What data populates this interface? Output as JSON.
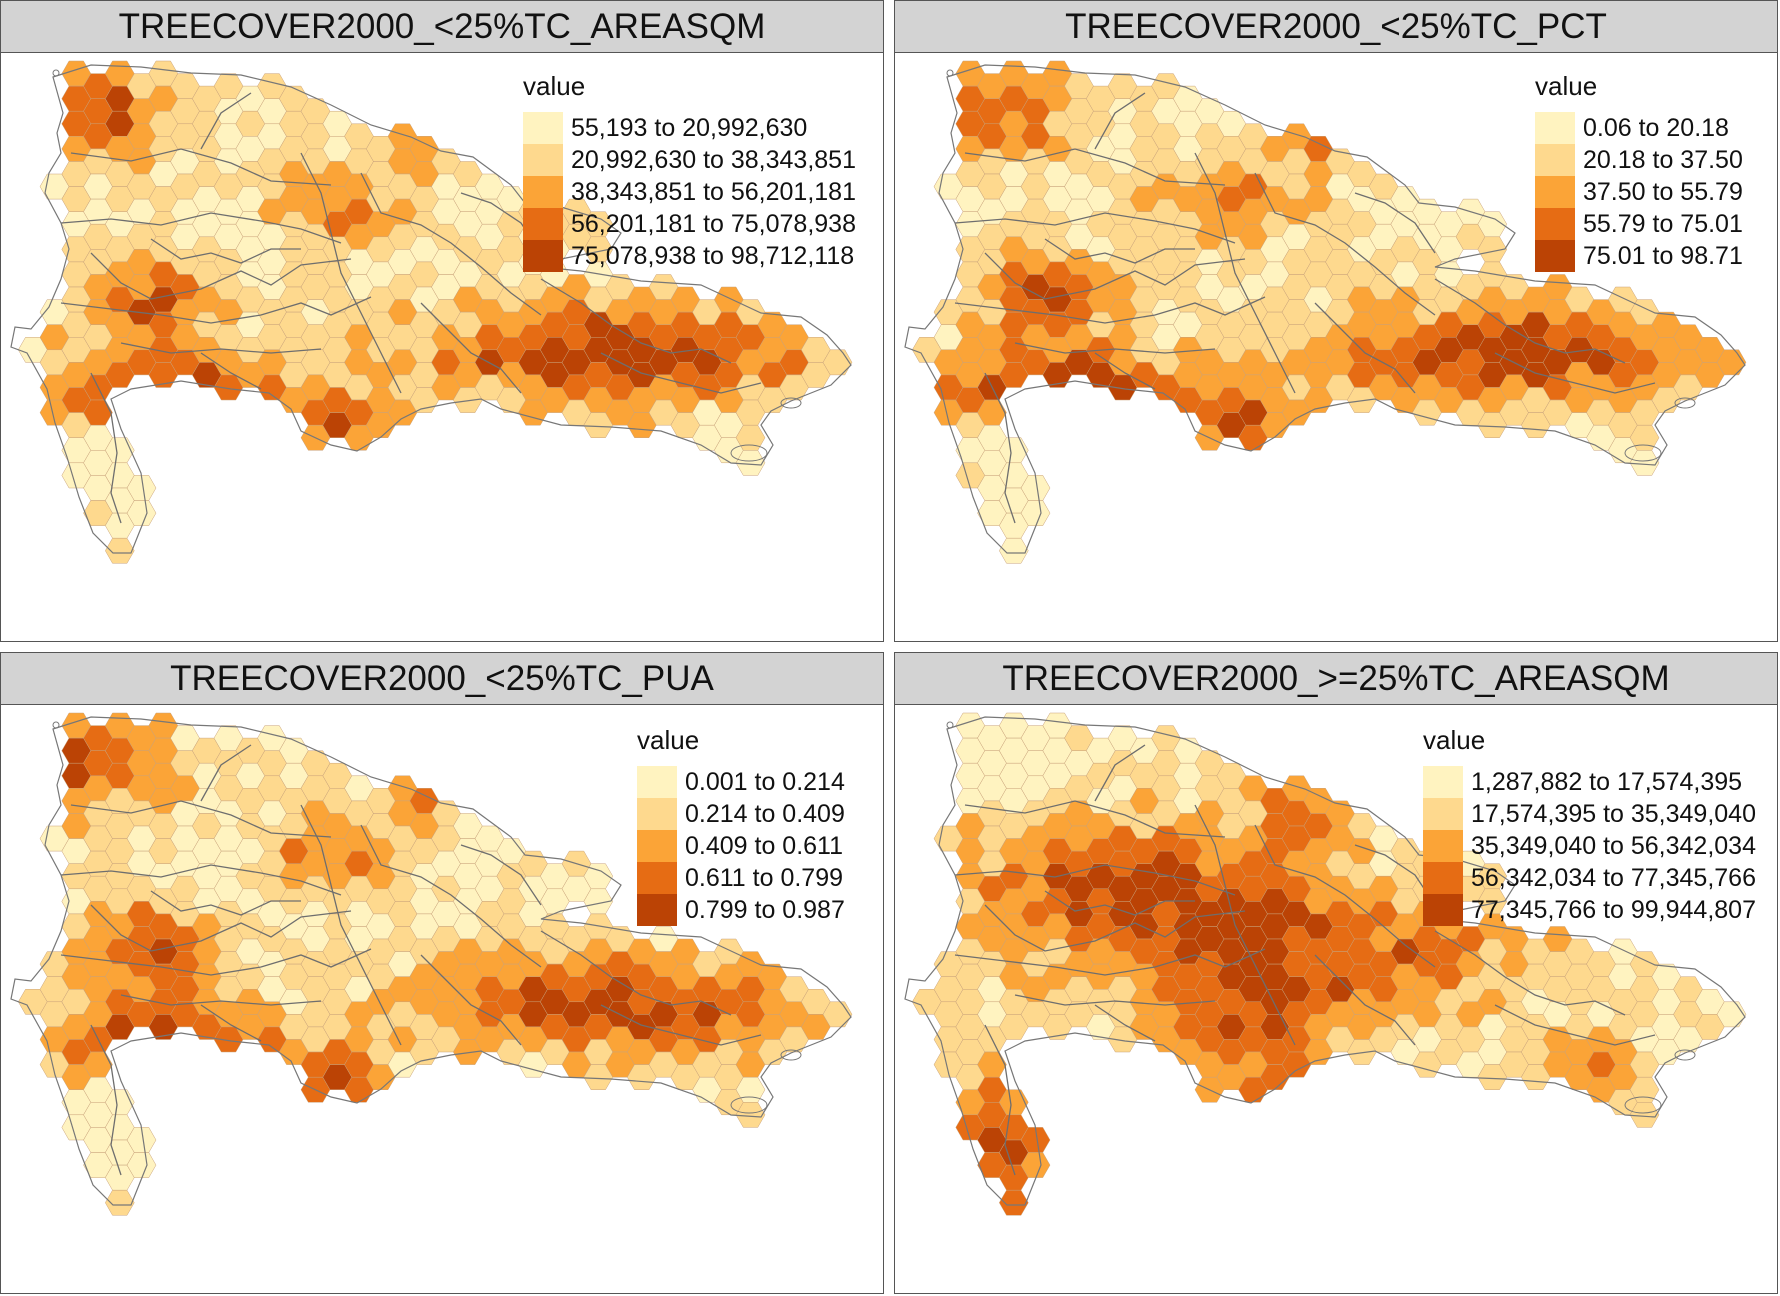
{
  "palette": [
    "#fff3c0",
    "#fed98e",
    "#fba437",
    "#e66c14",
    "#bb4305"
  ],
  "panels": [
    {
      "title": "TREECOVER2000_<25%TC_AREASQM",
      "legend_title": "value",
      "legend_classes": [
        "55,193 to 20,992,630",
        "20,992,630 to 38,343,851",
        "38,343,851 to 56,201,181",
        "56,201,181 to 75,078,938",
        "75,078,938 to 98,712,118"
      ]
    },
    {
      "title": "TREECOVER2000_<25%TC_PCT",
      "legend_title": "value",
      "legend_classes": [
        "0.06 to 20.18",
        "20.18 to 37.50",
        "37.50 to 55.79",
        "55.79 to 75.01",
        "75.01 to 98.71"
      ]
    },
    {
      "title": "TREECOVER2000_<25%TC_PUA",
      "legend_title": "value",
      "legend_classes": [
        "0.001 to 0.214",
        "0.214 to 0.409",
        "0.409 to 0.611",
        "0.611 to 0.799",
        "0.799 to 0.987"
      ]
    },
    {
      "title": "TREECOVER2000_>=25%TC_AREASQM",
      "legend_title": "value",
      "legend_classes": [
        "1,287,882 to 17,574,395",
        "17,574,395 to 35,349,040",
        "35,349,040 to 56,342,034",
        "56,342,034 to 77,345,766",
        "77,345,766 to 99,944,807"
      ]
    }
  ]
}
